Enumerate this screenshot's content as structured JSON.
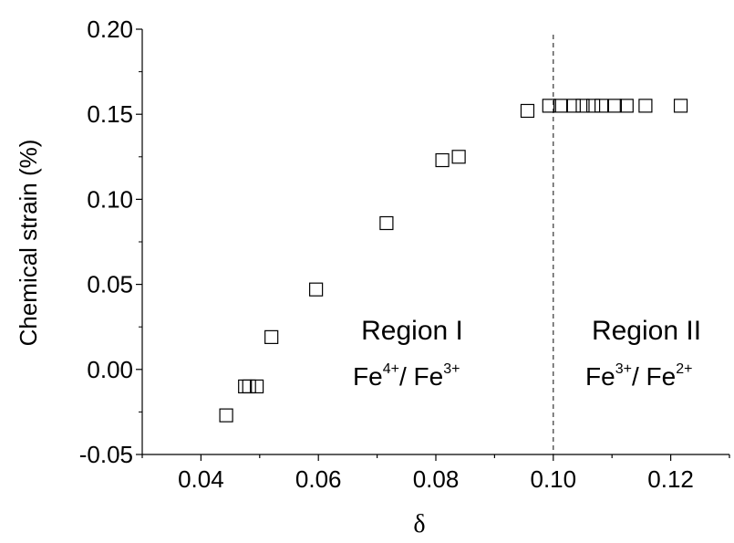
{
  "chart_data": {
    "type": "scatter",
    "xlabel": "δ",
    "ylabel": "Chemical strain (%)",
    "xlim": [
      0.03,
      0.13
    ],
    "ylim": [
      -0.05,
      0.2
    ],
    "xticks": [
      "0.04",
      "0.06",
      "0.08",
      "0.10",
      "0.12"
    ],
    "yticks": [
      "-0.05",
      "0.00",
      "0.05",
      "0.10",
      "0.15",
      "0.20"
    ],
    "grid": false,
    "marker": "open-square",
    "series": [
      {
        "points": [
          {
            "x": 0.0443,
            "y": -0.027
          },
          {
            "x": 0.0475,
            "y": -0.01
          },
          {
            "x": 0.0482,
            "y": -0.01
          },
          {
            "x": 0.0495,
            "y": -0.01
          },
          {
            "x": 0.052,
            "y": 0.019
          },
          {
            "x": 0.0596,
            "y": 0.047
          },
          {
            "x": 0.0716,
            "y": 0.086
          },
          {
            "x": 0.0811,
            "y": 0.123
          },
          {
            "x": 0.0839,
            "y": 0.125
          },
          {
            "x": 0.0956,
            "y": 0.152
          },
          {
            "x": 0.0993,
            "y": 0.155
          },
          {
            "x": 0.1012,
            "y": 0.155
          },
          {
            "x": 0.1035,
            "y": 0.155
          },
          {
            "x": 0.105,
            "y": 0.155
          },
          {
            "x": 0.1068,
            "y": 0.155
          },
          {
            "x": 0.1082,
            "y": 0.155
          },
          {
            "x": 0.1105,
            "y": 0.155
          },
          {
            "x": 0.1125,
            "y": 0.155
          },
          {
            "x": 0.1157,
            "y": 0.155
          },
          {
            "x": 0.1217,
            "y": 0.155
          }
        ]
      }
    ],
    "reference_line": {
      "axis": "x",
      "value": 0.1,
      "style": "dashed"
    },
    "annotations": {
      "region1": {
        "title": "Region I",
        "ion_a": "Fe",
        "sup_a": "4+",
        "slash": "/ ",
        "ion_b": "Fe",
        "sup_b": "3+"
      },
      "region2": {
        "title": "Region II",
        "ion_a": "Fe",
        "sup_a": "3+",
        "slash": "/ ",
        "ion_b": "Fe",
        "sup_b": "2+"
      }
    }
  }
}
